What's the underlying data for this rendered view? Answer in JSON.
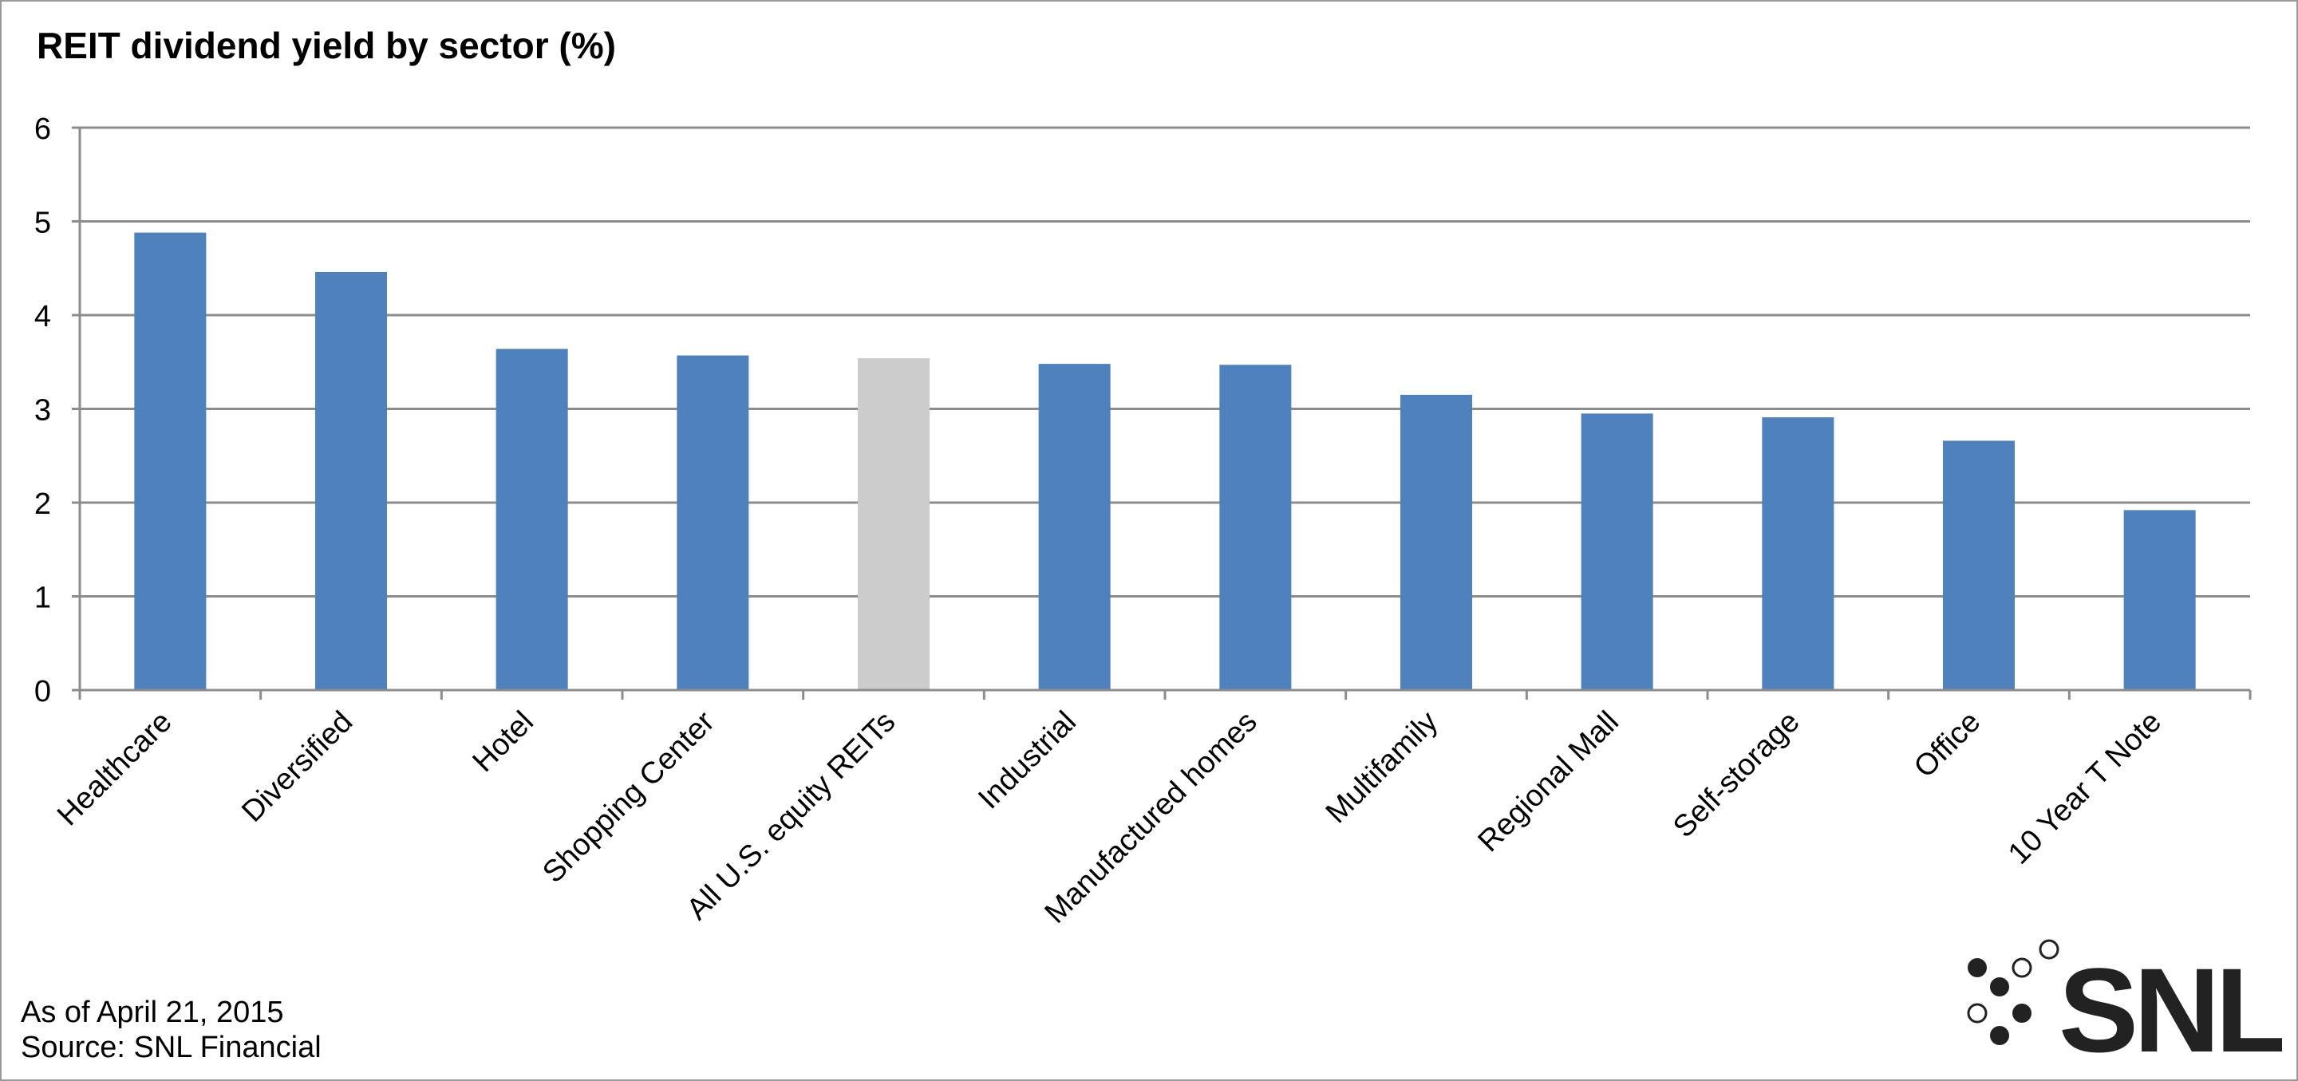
{
  "chart_data": {
    "type": "bar",
    "title": "REIT dividend yield by sector (%)",
    "xlabel": "",
    "ylabel": "",
    "ylim": [
      0,
      6
    ],
    "yticks": [
      "0",
      "1",
      "2",
      "3",
      "4",
      "5",
      "6"
    ],
    "grid": true,
    "categories": [
      "Healthcare",
      "Diversified",
      "Hotel",
      "Shopping Center",
      "All U.S. equity REITs",
      "Industrial",
      "Manufactured homes",
      "Multifamily",
      "Regional Mall",
      "Self-storage",
      "Office",
      "10 Year T Note"
    ],
    "values": [
      4.88,
      4.46,
      3.64,
      3.57,
      3.54,
      3.48,
      3.47,
      3.15,
      2.95,
      2.91,
      2.66,
      1.92
    ],
    "colors": {
      "bar": "#4f81bd",
      "highlight_bar": "#cccccc",
      "highlight_category": "All U.S. equity REITs",
      "grid": "#8c8c8c",
      "axis": "#8c8c8c"
    }
  },
  "notes": {
    "as_of": "As of April 21, 2015",
    "source": "Source: SNL Financial"
  },
  "logo": {
    "text": "SNL",
    "icon": "snl-dots-logo-icon"
  }
}
